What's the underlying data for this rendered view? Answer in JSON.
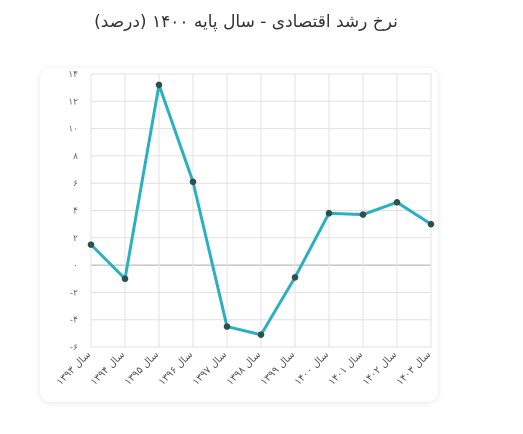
{
  "chart_data": {
    "type": "line",
    "title": "نرخ رشد اقتصادی - سال پایه ۱۴۰۰ (درصد)",
    "categories": [
      "سال ۱۳۹۳",
      "سال ۱۳۹۴",
      "سال ۱۳۹۵",
      "سال ۱۳۹۶",
      "سال ۱۳۹۷",
      "سال ۱۳۹۸",
      "سال ۱۳۹۹",
      "سال ۱۴۰۰",
      "سال ۱۴۰۱",
      "سال ۱۴۰۲",
      "سال ۱۴۰۳"
    ],
    "values": [
      1.5,
      -1.0,
      13.2,
      6.1,
      -4.5,
      -5.1,
      -0.9,
      3.8,
      3.7,
      4.6,
      3.0
    ],
    "ylim": [
      -6,
      14
    ],
    "yticks": [
      -6,
      -4,
      -2,
      0,
      2,
      4,
      6,
      8,
      10,
      12,
      14
    ],
    "ytick_labels": [
      "-۶",
      "-۴",
      "-۲",
      "۰",
      "۲",
      "۴",
      "۶",
      "۸",
      "۱۰",
      "۱۲",
      "۱۴"
    ],
    "grid": true,
    "colors": {
      "line": "#2bb0c0",
      "marker": "#2f4f4f",
      "grid": "#e0e0e0",
      "zero": "#aaaaaa"
    }
  }
}
